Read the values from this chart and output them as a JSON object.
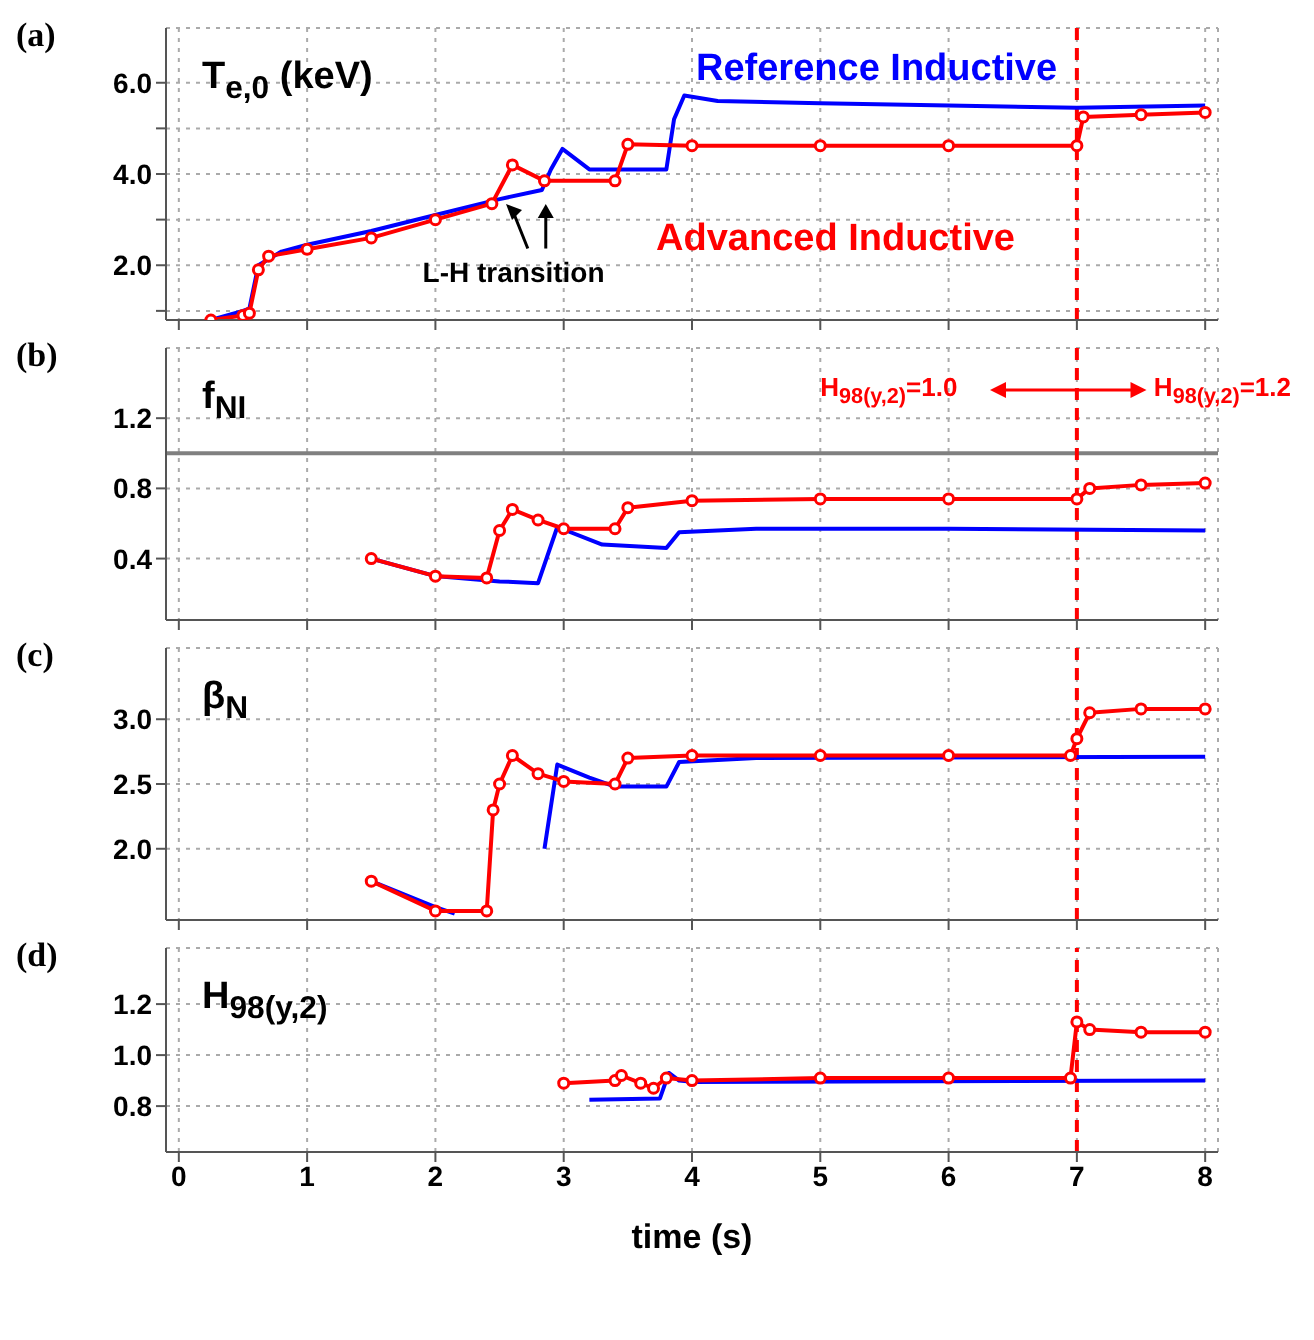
{
  "chart_data": [
    {
      "type": "line",
      "title": "(a)",
      "ylabel": "T$_{e,0}$ (keV)",
      "annotations": [
        "L-H transition"
      ],
      "xlim": [
        -0.1,
        8.1
      ],
      "xticks": [
        0,
        1,
        2,
        3,
        4,
        5,
        6,
        7,
        8
      ],
      "ylim": [
        0.8,
        7.2
      ],
      "yticks": [
        {
          "value": 1,
          "label": null
        },
        {
          "value": 2,
          "label": "2.0"
        },
        {
          "value": 3,
          "label": null
        },
        {
          "value": 4,
          "label": "4.0"
        },
        {
          "value": 5,
          "label": null
        },
        {
          "value": 6,
          "label": "6.0"
        }
      ],
      "grid": true,
      "tick_labels": "y",
      "ref_lines": [
        {
          "axis": "x",
          "value": 7,
          "color": "#ff0000",
          "line_style": "dashed"
        }
      ],
      "series": [
        {
          "name": "Reference Inductive",
          "color": "#0000ff",
          "x": [
            0.25,
            0.5,
            0.55,
            0.62,
            0.8,
            1.0,
            1.5,
            2.0,
            2.5,
            2.83,
            2.9,
            2.99,
            3.2,
            3.8,
            3.86,
            3.94,
            4.2,
            5.0,
            6.0,
            7.0,
            8.0
          ],
          "values": [
            0.8,
            1.0,
            1.05,
            2.0,
            2.3,
            2.45,
            2.75,
            3.1,
            3.45,
            3.65,
            4.1,
            4.55,
            4.1,
            4.1,
            5.2,
            5.72,
            5.6,
            5.55,
            5.5,
            5.45,
            5.5
          ]
        },
        {
          "name": "Advanced Inductive",
          "color": "#ff0000",
          "marker": "circle",
          "x": [
            0.25,
            0.5,
            0.55,
            0.62,
            0.7,
            1.0,
            1.5,
            2.0,
            2.44,
            2.6,
            2.85,
            3.4,
            3.5,
            4.0,
            5.0,
            6.0,
            7.0,
            7.05,
            7.5,
            8.0
          ],
          "values": [
            0.8,
            0.9,
            0.95,
            1.9,
            2.2,
            2.35,
            2.6,
            3.0,
            3.35,
            4.2,
            3.85,
            3.85,
            4.65,
            4.62,
            4.62,
            4.62,
            4.62,
            5.25,
            5.3,
            5.35
          ]
        }
      ]
    },
    {
      "type": "line",
      "title": "(b)",
      "ylabel": "f$_{NI}$",
      "annotations": [
        "H$_{98(y,2)}$=1.0",
        "H$_{98(y,2)}$=1.2"
      ],
      "xlim": [
        -0.1,
        8.1
      ],
      "xticks": [
        0,
        1,
        2,
        3,
        4,
        5,
        6,
        7,
        8
      ],
      "ylim": [
        0.05,
        1.6
      ],
      "yticks": [
        0.4,
        0.8,
        1.2
      ],
      "grid": true,
      "tick_labels": "y",
      "ref_lines": [
        {
          "axis": "y",
          "value": 1.0,
          "color": "#808080"
        },
        {
          "axis": "x",
          "value": 7,
          "color": "#ff0000",
          "line_style": "dashed"
        }
      ],
      "series": [
        {
          "color": "#0000ff",
          "x": [
            1.5,
            2.0,
            2.5,
            2.8,
            2.95,
            3.3,
            3.8,
            3.9,
            4.5,
            6.0,
            8.0
          ],
          "values": [
            0.4,
            0.3,
            0.27,
            0.26,
            0.58,
            0.48,
            0.46,
            0.55,
            0.57,
            0.57,
            0.56
          ]
        },
        {
          "color": "#ff0000",
          "marker": "circle",
          "x": [
            1.5,
            2.0,
            2.4,
            2.5,
            2.6,
            2.8,
            3.0,
            3.4,
            3.5,
            4.0,
            5.0,
            6.0,
            7.0,
            7.1,
            7.5,
            8.0
          ],
          "values": [
            0.4,
            0.3,
            0.29,
            0.56,
            0.68,
            0.62,
            0.57,
            0.57,
            0.69,
            0.73,
            0.74,
            0.74,
            0.74,
            0.8,
            0.82,
            0.83
          ]
        }
      ]
    },
    {
      "type": "line",
      "title": "(c)",
      "ylabel": "β$_{N}$",
      "xlim": [
        -0.1,
        8.1
      ],
      "xticks": [
        0,
        1,
        2,
        3,
        4,
        5,
        6,
        7,
        8
      ],
      "ylim": [
        1.45,
        3.55
      ],
      "yticks": [
        {
          "value": 2,
          "label": "2.0"
        },
        2.5,
        {
          "value": 3,
          "label": "3.0"
        }
      ],
      "grid": true,
      "tick_labels": "y",
      "ref_lines": [
        {
          "axis": "x",
          "value": 7,
          "color": "#ff0000",
          "line_style": "dashed"
        }
      ],
      "series": [
        {
          "color": "#0000ff",
          "x": [
            1.5,
            2.0,
            2.15,
            2.5,
            2.85,
            2.95,
            3.2,
            3.4,
            3.8,
            3.9,
            4.5,
            8.0
          ],
          "values": [
            1.75,
            1.55,
            1.5,
            null,
            2.0,
            2.65,
            2.55,
            2.48,
            2.48,
            2.67,
            2.7,
            2.71
          ]
        },
        {
          "color": "#ff0000",
          "marker": "circle",
          "x": [
            1.5,
            2.0,
            2.4,
            2.45,
            2.5,
            2.6,
            2.8,
            3.0,
            3.4,
            3.5,
            4.0,
            5.0,
            6.0,
            6.95,
            7.0,
            7.1,
            7.5,
            8.0
          ],
          "values": [
            1.75,
            1.52,
            1.52,
            2.3,
            2.5,
            2.72,
            2.58,
            2.52,
            2.5,
            2.7,
            2.72,
            2.72,
            2.72,
            2.72,
            2.85,
            3.05,
            3.08,
            3.08
          ]
        }
      ]
    },
    {
      "type": "line",
      "title": "(d)",
      "ylabel": "H$_{98(y,2)}$",
      "xlabel": "time (s)",
      "xlim": [
        -0.1,
        8.1
      ],
      "xticks": [
        0,
        1,
        2,
        3,
        4,
        5,
        6,
        7,
        8
      ],
      "ylim": [
        0.62,
        1.42
      ],
      "yticks": [
        {
          "value": 0.8,
          "label": "0.8"
        },
        {
          "value": 1,
          "label": "1.0"
        },
        1.2
      ],
      "grid": true,
      "ref_lines": [
        {
          "axis": "x",
          "value": 7,
          "color": "#ff0000",
          "line_style": "dashed"
        }
      ],
      "series": [
        {
          "color": "#0000ff",
          "x": [
            3.2,
            3.75,
            3.82,
            3.9,
            4.0,
            8.0
          ],
          "values": [
            0.825,
            0.83,
            0.93,
            0.9,
            0.895,
            0.9
          ]
        },
        {
          "color": "#ff0000",
          "marker": "circle",
          "x": [
            3.0,
            3.4,
            3.45,
            3.6,
            3.7,
            3.8,
            4.0,
            5.0,
            6.0,
            6.95,
            7.0,
            7.1,
            7.5,
            8.0
          ],
          "values": [
            0.89,
            0.9,
            0.92,
            0.89,
            0.87,
            0.91,
            0.9,
            0.91,
            0.91,
            0.91,
            1.13,
            1.1,
            1.09,
            1.09
          ]
        }
      ]
    }
  ]
}
